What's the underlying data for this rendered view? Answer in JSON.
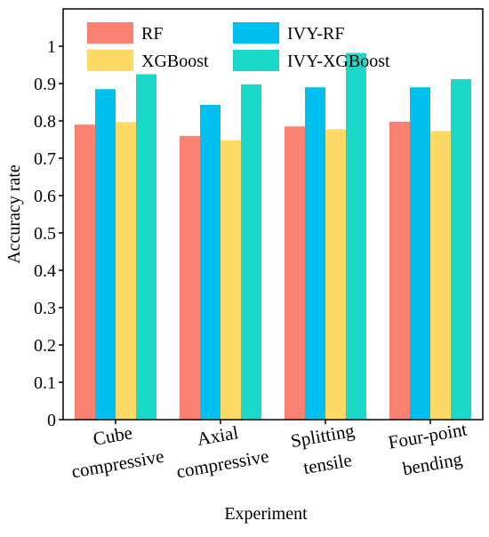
{
  "chart_data": {
    "type": "bar",
    "categories": [
      [
        "Cube",
        "compressive"
      ],
      [
        "Axial",
        "compressive"
      ],
      [
        "Splitting",
        "tensile"
      ],
      [
        "Four-point",
        "bending"
      ]
    ],
    "series": [
      {
        "name": "RF",
        "color": "#FA8072",
        "values": [
          0.79,
          0.76,
          0.785,
          0.798
        ]
      },
      {
        "name": "IVY-RF",
        "color": "#00C0F0",
        "values": [
          0.885,
          0.843,
          0.89,
          0.89
        ]
      },
      {
        "name": "XGBoost",
        "color": "#FFD966",
        "values": [
          0.797,
          0.748,
          0.778,
          0.773
        ]
      },
      {
        "name": "IVY-XGBoost",
        "color": "#1AD9C8",
        "values": [
          0.925,
          0.898,
          0.982,
          0.912
        ]
      }
    ],
    "xlabel": "Experiment",
    "ylabel": "Accuracy rate",
    "ylim": [
      0,
      1.1
    ],
    "yticks": [
      "0",
      "0.1",
      "0.2",
      "0.3",
      "0.4",
      "0.5",
      "0.6",
      "0.7",
      "0.8",
      "0.9",
      "1"
    ],
    "legend": {
      "placement": "top",
      "order": [
        "RF",
        "IVY-RF",
        "XGBoost",
        "IVY-XGBoost"
      ]
    },
    "grid": false
  }
}
